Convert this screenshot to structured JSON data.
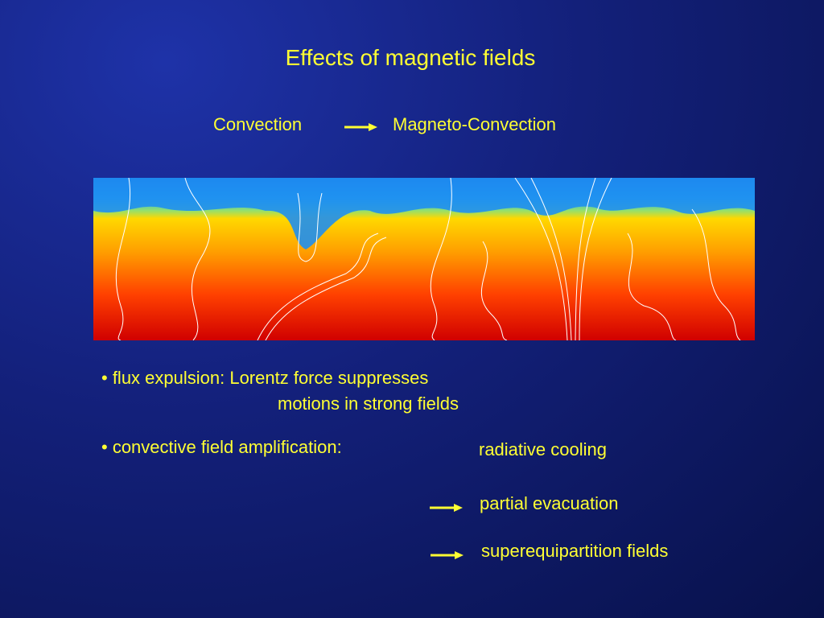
{
  "slide": {
    "title": "Effects of magnetic fields",
    "subtitle_left": "Convection",
    "subtitle_right": "Magneto-Convection",
    "bullets": [
      {
        "lines": [
          "• flux expulsion: Lorentz force suppresses",
          "motions in strong fields"
        ]
      },
      {
        "lines": [
          "• convective field amplification:"
        ]
      }
    ],
    "chain": [
      "radiative cooling",
      "partial evacuation",
      "superequipartition fields"
    ]
  }
}
